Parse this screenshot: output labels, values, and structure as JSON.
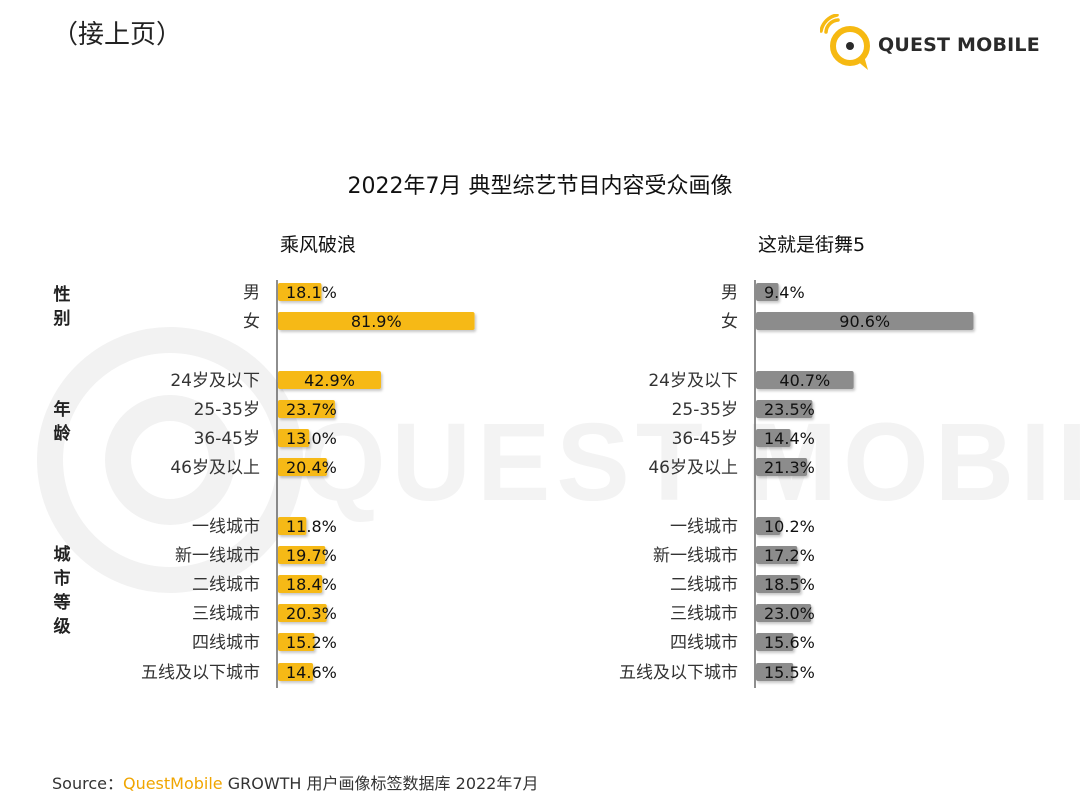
{
  "page": {
    "continued_label": "（接上页）",
    "logo_text": "QUEST MOBILE",
    "watermark_text": "QUEST MOBILE"
  },
  "footer": {
    "source_prefix": "Source：",
    "source_brand": "QuestMobile",
    "source_rest": " GROWTH 用户画像标签数据库 2022年7月"
  },
  "colors": {
    "panel1_bar": "#f6b912",
    "panel2_bar": "#8c8c8c",
    "logo_accent": "#f6b912",
    "watermark": "#f2f2f2"
  },
  "chart_data": {
    "type": "bar",
    "orientation": "horizontal",
    "title": "2022年7月 典型综艺节目内容受众画像",
    "groups": [
      {
        "name": "性别",
        "categories": [
          "男",
          "女"
        ]
      },
      {
        "name": "年龄",
        "categories": [
          "24岁及以下",
          "25-35岁",
          "36-45岁",
          "46岁及以上"
        ]
      },
      {
        "name": "城市等级",
        "categories": [
          "一线城市",
          "新一线城市",
          "二线城市",
          "三线城市",
          "四线城市",
          "五线及以下城市"
        ]
      }
    ],
    "unit": "%",
    "xlim": [
      0,
      100
    ],
    "panels": [
      {
        "name": "乘风破浪",
        "values": [
          [
            18.1,
            81.9
          ],
          [
            42.9,
            23.7,
            13.0,
            20.4
          ],
          [
            11.8,
            19.7,
            18.4,
            20.3,
            15.2,
            14.6
          ]
        ],
        "labels": [
          [
            "18.1%",
            "81.9%"
          ],
          [
            "42.9%",
            "23.7%",
            "13.0%",
            "20.4%"
          ],
          [
            "11.8%",
            "19.7%",
            "18.4%",
            "20.3%",
            "15.2%",
            "14.6%"
          ]
        ]
      },
      {
        "name": "这就是街舞5",
        "values": [
          [
            9.4,
            90.6
          ],
          [
            40.7,
            23.5,
            14.4,
            21.3
          ],
          [
            10.2,
            17.2,
            18.5,
            23.0,
            15.6,
            15.5
          ]
        ],
        "labels": [
          [
            "9.4%",
            "90.6%"
          ],
          [
            "40.7%",
            "23.5%",
            "14.4%",
            "21.3%"
          ],
          [
            "10.2%",
            "17.2%",
            "18.5%",
            "23.0%",
            "15.6%",
            "15.5%"
          ]
        ]
      }
    ]
  }
}
